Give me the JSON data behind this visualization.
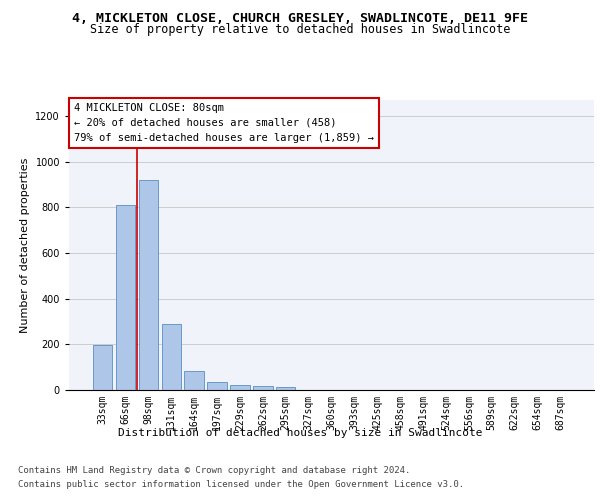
{
  "title1": "4, MICKLETON CLOSE, CHURCH GRESLEY, SWADLINCOTE, DE11 9FE",
  "title2": "Size of property relative to detached houses in Swadlincote",
  "xlabel": "Distribution of detached houses by size in Swadlincote",
  "ylabel": "Number of detached properties",
  "categories": [
    "33sqm",
    "66sqm",
    "98sqm",
    "131sqm",
    "164sqm",
    "197sqm",
    "229sqm",
    "262sqm",
    "295sqm",
    "327sqm",
    "360sqm",
    "393sqm",
    "425sqm",
    "458sqm",
    "491sqm",
    "524sqm",
    "556sqm",
    "589sqm",
    "622sqm",
    "654sqm",
    "687sqm"
  ],
  "bar_values": [
    195,
    810,
    920,
    290,
    85,
    35,
    20,
    18,
    12,
    0,
    0,
    0,
    0,
    0,
    0,
    0,
    0,
    0,
    0,
    0,
    0
  ],
  "bar_color": "#aec6e8",
  "bar_edge_color": "#5a8fc2",
  "vline_x": 1.5,
  "vline_color": "#cc0000",
  "annotation_line1": "4 MICKLETON CLOSE: 80sqm",
  "annotation_line2": "← 20% of detached houses are smaller (458)",
  "annotation_line3": "79% of semi-detached houses are larger (1,859) →",
  "annotation_box_color": "#ffffff",
  "annotation_box_edge": "#cc0000",
  "ylim": [
    0,
    1270
  ],
  "yticks": [
    0,
    200,
    400,
    600,
    800,
    1000,
    1200
  ],
  "grid_color": "#cccccc",
  "background_color": "#f0f4fa",
  "footer1": "Contains HM Land Registry data © Crown copyright and database right 2024.",
  "footer2": "Contains public sector information licensed under the Open Government Licence v3.0.",
  "title_fontsize": 9.5,
  "subtitle_fontsize": 8.5,
  "annotation_fontsize": 7.5,
  "axis_fontsize": 7.0,
  "ylabel_fontsize": 8.0,
  "xlabel_fontsize": 8.0,
  "footer_fontsize": 6.5
}
